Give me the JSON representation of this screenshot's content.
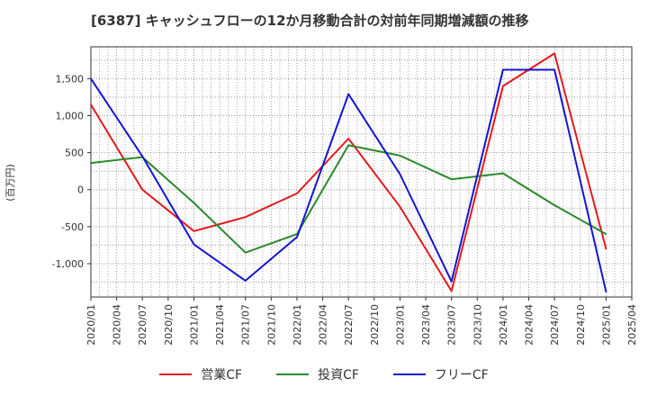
{
  "chart_data": {
    "type": "line",
    "title": "[6387]  キャッシュフローの12か月移動合計の対前年同期増減額の推移",
    "ylabel": "(百万円)",
    "xlabel": "",
    "x_ticks": [
      "2020/01",
      "2020/04",
      "2020/07",
      "2020/10",
      "2021/01",
      "2021/04",
      "2021/07",
      "2021/10",
      "2022/01",
      "2022/04",
      "2022/07",
      "2022/10",
      "2023/01",
      "2023/04",
      "2023/07",
      "2023/10",
      "2024/01",
      "2024/04",
      "2024/07",
      "2024/10",
      "2025/01",
      "2025/04"
    ],
    "y_ticks": [
      1500,
      1000,
      500,
      0,
      -500,
      -1000
    ],
    "y_tick_labels": [
      "1,500",
      "1,000",
      "500",
      "0",
      "-500",
      "-1,000"
    ],
    "ylim": [
      -1450,
      1930
    ],
    "grid": true,
    "legend_position": "bottom",
    "series": [
      {
        "name": "営業CF",
        "color": "#e31a1c",
        "points": [
          [
            "2020/01",
            1150
          ],
          [
            "2020/07",
            0
          ],
          [
            "2021/01",
            -560
          ],
          [
            "2021/07",
            -370
          ],
          [
            "2022/01",
            -50
          ],
          [
            "2022/07",
            690
          ],
          [
            "2023/01",
            -230
          ],
          [
            "2023/07",
            -1370
          ],
          [
            "2024/01",
            1400
          ],
          [
            "2024/07",
            1840
          ],
          [
            "2025/01",
            -800
          ]
        ]
      },
      {
        "name": "投資CF",
        "color": "#2a8a2a",
        "points": [
          [
            "2020/01",
            360
          ],
          [
            "2020/07",
            440
          ],
          [
            "2021/01",
            -180
          ],
          [
            "2021/07",
            -850
          ],
          [
            "2022/01",
            -600
          ],
          [
            "2022/07",
            600
          ],
          [
            "2023/01",
            460
          ],
          [
            "2023/07",
            140
          ],
          [
            "2024/01",
            220
          ],
          [
            "2024/07",
            -210
          ],
          [
            "2025/01",
            -600
          ]
        ]
      },
      {
        "name": "フリーCF",
        "color": "#1414d2",
        "points": [
          [
            "2020/01",
            1500
          ],
          [
            "2020/07",
            450
          ],
          [
            "2021/01",
            -740
          ],
          [
            "2021/07",
            -1230
          ],
          [
            "2022/01",
            -640
          ],
          [
            "2022/07",
            1290
          ],
          [
            "2023/01",
            210
          ],
          [
            "2023/07",
            -1240
          ],
          [
            "2024/01",
            1620
          ],
          [
            "2024/07",
            1620
          ],
          [
            "2025/01",
            -1380
          ]
        ]
      }
    ]
  }
}
